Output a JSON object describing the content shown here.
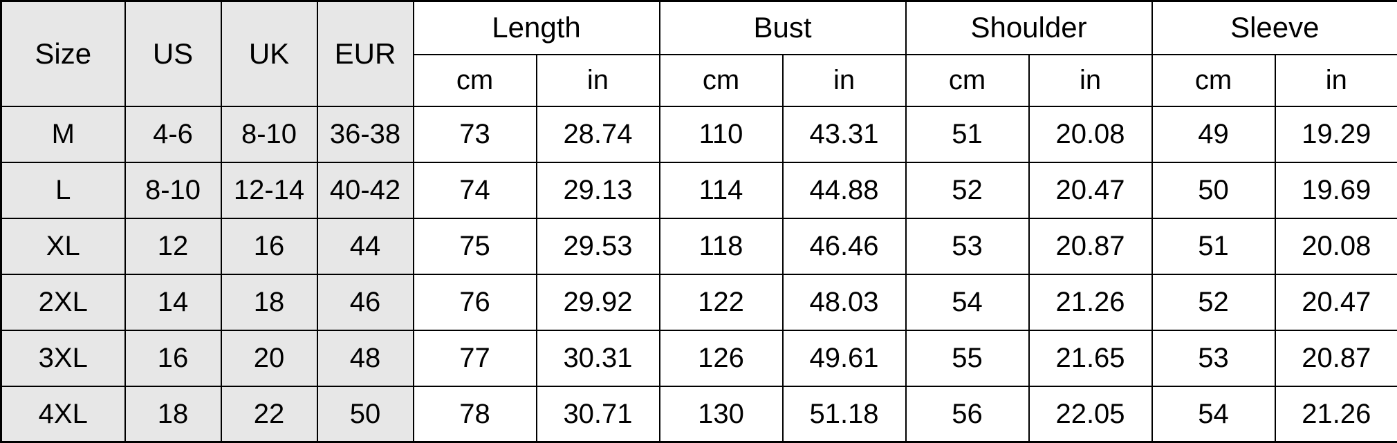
{
  "chart_data": {
    "type": "table",
    "header_groups": [
      {
        "label": "Size"
      },
      {
        "label": "US"
      },
      {
        "label": "UK"
      },
      {
        "label": "EUR"
      },
      {
        "label": "Length"
      },
      {
        "label": "Bust"
      },
      {
        "label": "Shoulder"
      },
      {
        "label": "Sleeve"
      }
    ],
    "unit_row": [
      "cm",
      "in",
      "cm",
      "in",
      "cm",
      "in",
      "cm",
      "in"
    ],
    "rows": [
      [
        "M",
        "4-6",
        "8-10",
        "36-38",
        "73",
        "28.74",
        "110",
        "43.31",
        "51",
        "20.08",
        "49",
        "19.29"
      ],
      [
        "L",
        "8-10",
        "12-14",
        "40-42",
        "74",
        "29.13",
        "114",
        "44.88",
        "52",
        "20.47",
        "50",
        "19.69"
      ],
      [
        "XL",
        "12",
        "16",
        "44",
        "75",
        "29.53",
        "118",
        "46.46",
        "53",
        "20.87",
        "51",
        "20.08"
      ],
      [
        "2XL",
        "14",
        "18",
        "46",
        "76",
        "29.92",
        "122",
        "48.03",
        "54",
        "21.26",
        "52",
        "20.47"
      ],
      [
        "3XL",
        "16",
        "20",
        "48",
        "77",
        "30.31",
        "126",
        "49.61",
        "55",
        "21.65",
        "53",
        "20.87"
      ],
      [
        "4XL",
        "18",
        "22",
        "50",
        "78",
        "30.71",
        "130",
        "51.18",
        "56",
        "22.05",
        "54",
        "21.26"
      ]
    ],
    "layout": {
      "grid": true,
      "gray_column_count": 4,
      "left_columns_bg": "#e7e7e7",
      "body_bg": "#ffffff",
      "border_color": "#000000",
      "text_color": "#000000"
    }
  }
}
